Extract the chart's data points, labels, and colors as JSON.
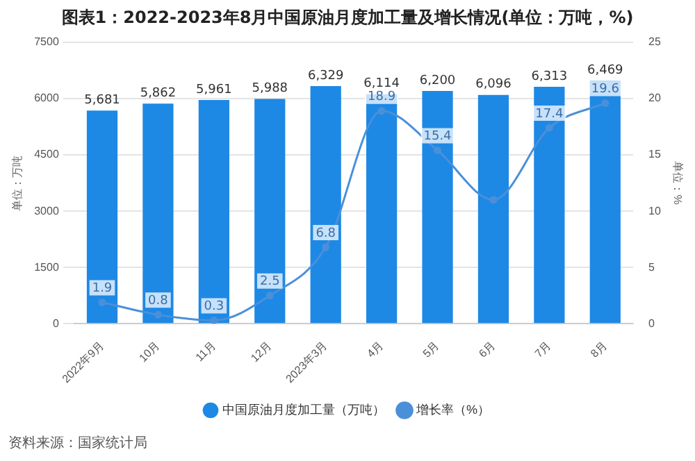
{
  "chart_data": {
    "type": "bar",
    "title": "图表1：2022-2023年8月中国原油月度加工量及增长情况(单位：万吨，%)",
    "ylabel": "单位：万吨",
    "y2label": "单位：%",
    "categories": [
      "2022年9月",
      "10月",
      "11月",
      "12月",
      "2023年3月",
      "4月",
      "5月",
      "6月",
      "7月",
      "8月"
    ],
    "series": [
      {
        "name": "中国原油月度加工量（万吨）",
        "color": "#1e88e5",
        "values": [
          5681,
          5862,
          5961,
          5988,
          6329,
          6114,
          6200,
          6096,
          6313,
          6469
        ],
        "value_labels": [
          "5,681",
          "5,862",
          "5,961",
          "5,988",
          "6,329",
          "6,114",
          "6,200",
          "6,096",
          "6,313",
          "6,469"
        ]
      },
      {
        "name": "增长率（%）",
        "type": "line",
        "axis": "y2",
        "color": "#4a90d9",
        "values": [
          1.9,
          0.8,
          0.3,
          2.5,
          6.8,
          18.9,
          15.4,
          11,
          17.4,
          19.6
        ],
        "value_labels": [
          "1.9",
          "0.8",
          "0.3",
          "2.5",
          "6.8",
          "18.9",
          "15.4",
          null,
          "17.4",
          "19.6"
        ]
      }
    ],
    "ylim": [
      0,
      7500
    ],
    "yticks": [
      0,
      1500,
      3000,
      4500,
      6000,
      7500
    ],
    "y2lim": [
      0,
      25
    ],
    "y2ticks": [
      0,
      5,
      10,
      15,
      20,
      25
    ],
    "grid": "y",
    "legend": "bottom",
    "marker": "circle",
    "annotations": [
      "资料来源：国家统计局"
    ]
  }
}
